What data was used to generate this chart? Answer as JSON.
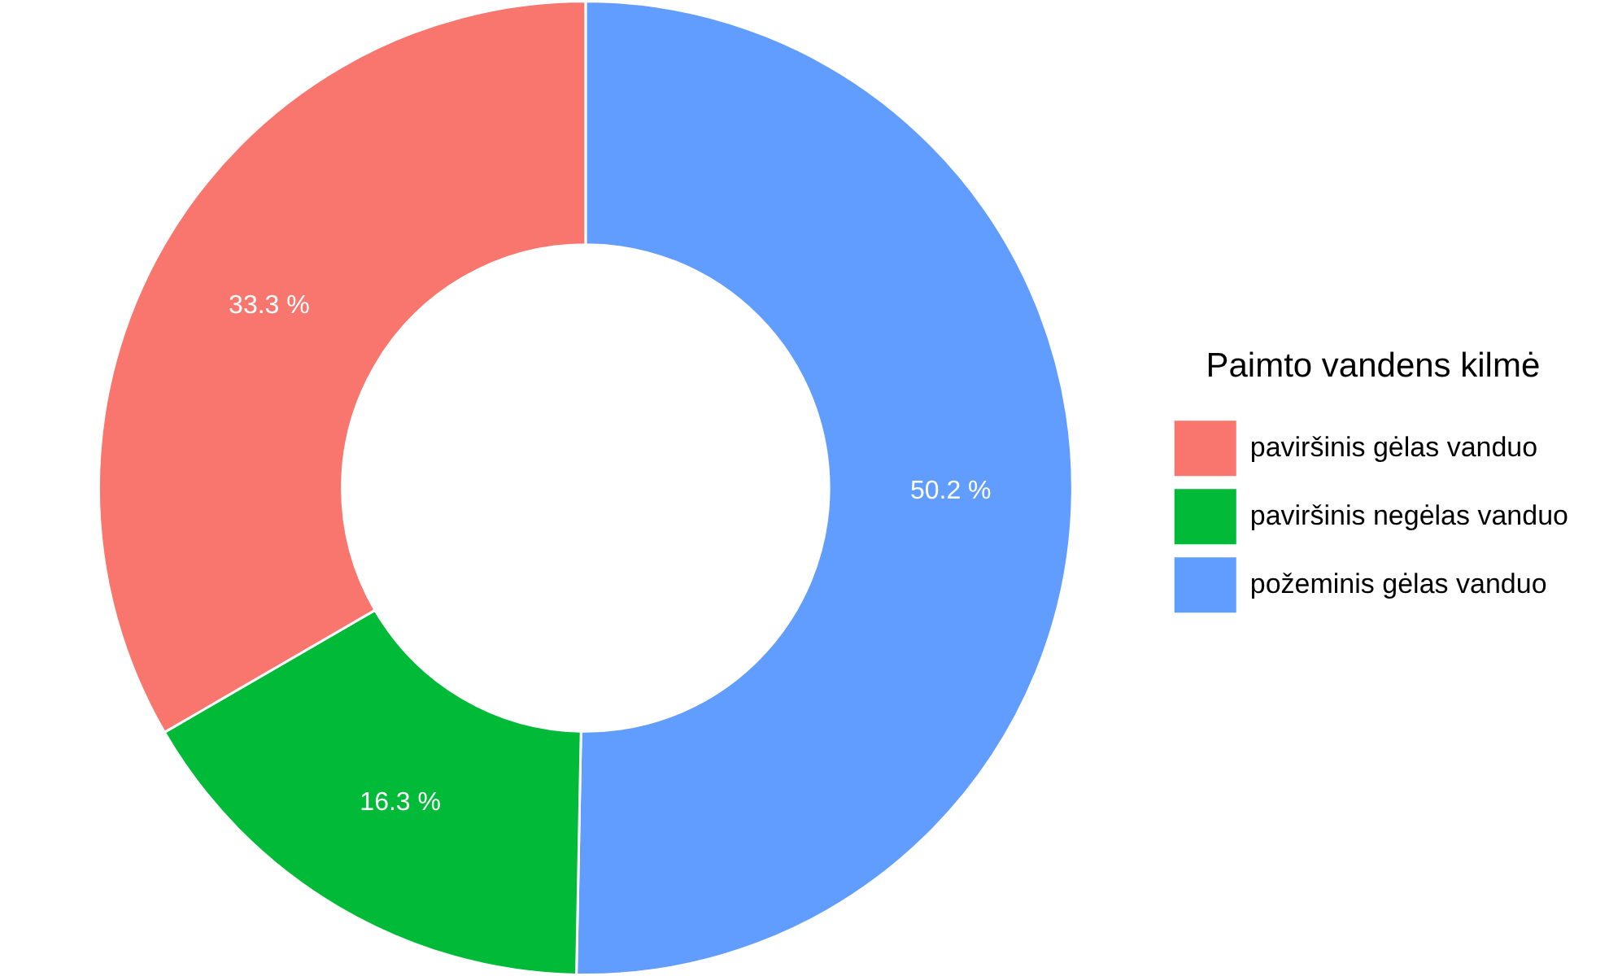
{
  "chart_data": {
    "type": "donut",
    "legend_title": "Paimto vandens kilmė",
    "legend": "right",
    "categories": [
      "paviršinis gėlas vanduo",
      "paviršinis negėlas vanduo",
      "požeminis gėlas vanduo"
    ],
    "values": [
      33.3,
      16.3,
      50.2
    ],
    "colors": [
      "#f8766d",
      "#00ba38",
      "#619cff"
    ],
    "value_labels": [
      "33.3 %",
      "16.3 %",
      "50.2 %"
    ]
  }
}
